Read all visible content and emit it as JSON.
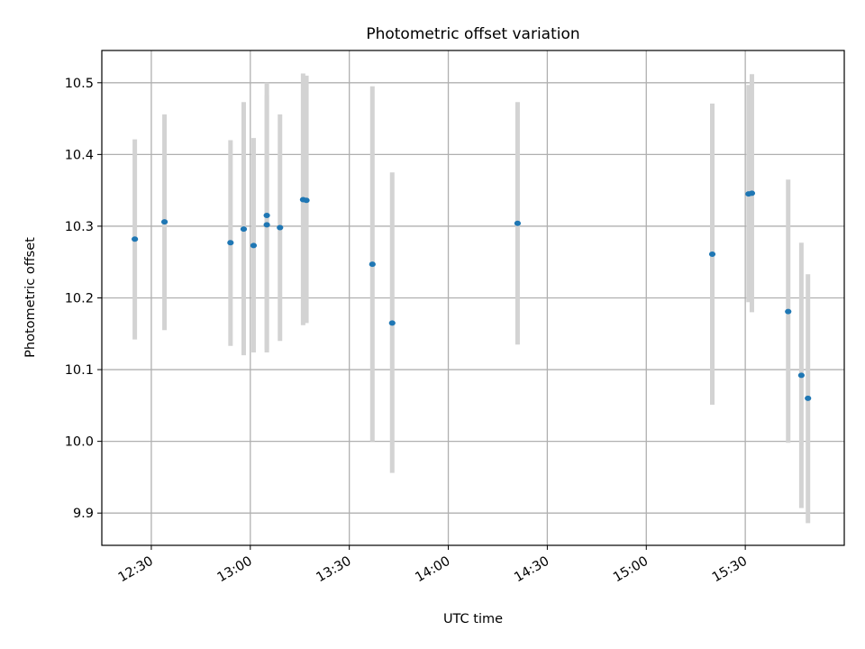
{
  "chart_data": {
    "type": "scatter",
    "title": "Photometric offset variation",
    "xlabel": "UTC time",
    "ylabel": "Photometric offset",
    "xlim": [
      "12:15",
      "16:00"
    ],
    "ylim": [
      9.855,
      10.545
    ],
    "grid": true,
    "x_ticks": [
      "12:30",
      "13:00",
      "13:30",
      "14:00",
      "14:30",
      "15:00",
      "15:30"
    ],
    "y_ticks": [
      "9.9",
      "10.0",
      "10.1",
      "10.2",
      "10.3",
      "10.4",
      "10.5"
    ],
    "colors": {
      "marker": "#1f77b4",
      "errorbar": "#d3d3d3",
      "grid": "#b0b0b0"
    },
    "points": [
      {
        "x": "12:25",
        "y": 10.282,
        "err_low": 10.142,
        "err_high": 10.421
      },
      {
        "x": "12:34",
        "y": 10.306,
        "err_low": 10.155,
        "err_high": 10.456
      },
      {
        "x": "12:54",
        "y": 10.277,
        "err_low": 10.133,
        "err_high": 10.42
      },
      {
        "x": "12:58",
        "y": 10.296,
        "err_low": 10.12,
        "err_high": 10.473
      },
      {
        "x": "13:01",
        "y": 10.273,
        "err_low": 10.124,
        "err_high": 10.423
      },
      {
        "x": "13:05",
        "y": 10.315,
        "err_low": 10.128,
        "err_high": 10.5
      },
      {
        "x": "13:05",
        "y": 10.302,
        "err_low": 10.124,
        "err_high": 10.482
      },
      {
        "x": "13:09",
        "y": 10.298,
        "err_low": 10.14,
        "err_high": 10.456
      },
      {
        "x": "13:16",
        "y": 10.337,
        "err_low": 10.162,
        "err_high": 10.513
      },
      {
        "x": "13:17",
        "y": 10.336,
        "err_low": 10.165,
        "err_high": 10.51
      },
      {
        "x": "13:37",
        "y": 10.247,
        "err_low": 10.0,
        "err_high": 10.495
      },
      {
        "x": "13:43",
        "y": 10.165,
        "err_low": 9.956,
        "err_high": 10.375
      },
      {
        "x": "14:21",
        "y": 10.304,
        "err_low": 10.135,
        "err_high": 10.473
      },
      {
        "x": "15:20",
        "y": 10.261,
        "err_low": 10.051,
        "err_high": 10.471
      },
      {
        "x": "15:31",
        "y": 10.345,
        "err_low": 10.194,
        "err_high": 10.497
      },
      {
        "x": "15:32",
        "y": 10.346,
        "err_low": 10.18,
        "err_high": 10.512
      },
      {
        "x": "15:43",
        "y": 10.181,
        "err_low": 9.998,
        "err_high": 10.365
      },
      {
        "x": "15:47",
        "y": 10.092,
        "err_low": 9.907,
        "err_high": 10.277
      },
      {
        "x": "15:49",
        "y": 10.06,
        "err_low": 9.886,
        "err_high": 10.233
      }
    ]
  }
}
